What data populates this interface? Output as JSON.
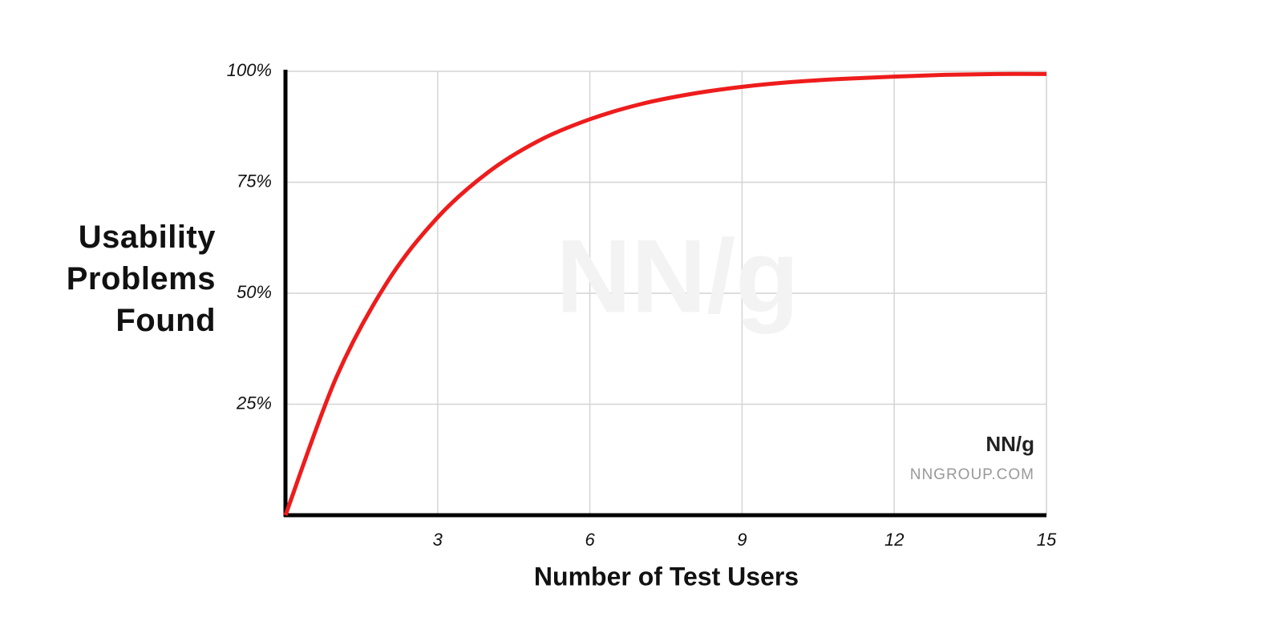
{
  "chart_data": {
    "type": "line",
    "x_label": "Number of Test Users",
    "y_label": "Usability Problems Found",
    "watermark": "NN/g",
    "logo": {
      "mark": "NN/g",
      "site": "NNGROUP.COM"
    },
    "x": [
      0,
      1,
      2,
      3,
      4,
      5,
      6,
      7,
      8,
      9,
      10,
      11,
      12,
      13,
      14,
      15
    ],
    "series": [
      {
        "name": "Usability Problems Found",
        "color": "#ee1c1c",
        "values": [
          0,
          31,
          52.4,
          67.1,
          77.3,
          84.4,
          89.2,
          92.6,
          94.9,
          96.5,
          97.6,
          98.3,
          98.8,
          99.2,
          99.4,
          99.4
        ]
      }
    ],
    "xlim": [
      0,
      15
    ],
    "xticks": [
      3,
      6,
      9,
      12,
      15
    ],
    "ylim": [
      0,
      100
    ],
    "yticks": [
      {
        "value": 25,
        "label": "25%"
      },
      {
        "value": 50,
        "label": "50%"
      },
      {
        "value": 75,
        "label": "75%"
      },
      {
        "value": 100,
        "label": "100%"
      }
    ],
    "grid": true
  }
}
